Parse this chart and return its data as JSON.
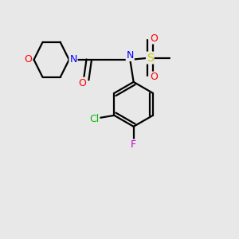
{
  "background_color": "#e8e8e8",
  "bond_color": "#000000",
  "atom_colors": {
    "O": "#ff0000",
    "N": "#0000ff",
    "S": "#cccc00",
    "Cl": "#00bb00",
    "F": "#cc00cc",
    "C": "#000000"
  },
  "figsize": [
    3.0,
    3.0
  ],
  "dpi": 100,
  "lw": 1.6
}
